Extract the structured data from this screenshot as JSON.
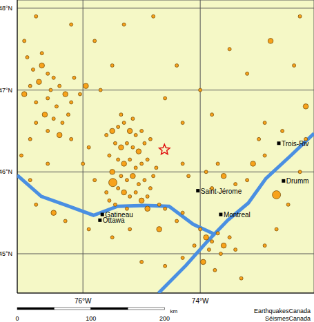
{
  "chart_data": {
    "type": "scatter",
    "xlim": [
      -77.12,
      -72.06
    ],
    "ylim": [
      44.52,
      48.1
    ],
    "xticks": [
      {
        "value": -76,
        "label": "76°W"
      },
      {
        "value": -74,
        "label": "74°W"
      }
    ],
    "yticks": [
      {
        "value": 45,
        "label": "45°N"
      },
      {
        "value": 46,
        "label": "46°N"
      },
      {
        "value": 47,
        "label": "47°N"
      },
      {
        "value": 48,
        "label": "48°N"
      }
    ],
    "grid": true,
    "color": "#f7a21b",
    "earthquakes": [
      [
        -76.85,
        47.25,
        1
      ],
      [
        -76.7,
        47.3,
        2
      ],
      [
        -76.6,
        47.2,
        1
      ],
      [
        -76.5,
        47.15,
        1
      ],
      [
        -76.75,
        47.1,
        2
      ],
      [
        -76.9,
        47.05,
        1
      ],
      [
        -76.55,
        47.0,
        1
      ],
      [
        -76.4,
        47.05,
        1
      ],
      [
        -76.3,
        46.95,
        2
      ],
      [
        -76.6,
        46.9,
        1
      ],
      [
        -76.8,
        46.85,
        1
      ],
      [
        -76.45,
        46.8,
        1
      ],
      [
        -76.2,
        46.85,
        1
      ],
      [
        -76.65,
        46.7,
        2
      ],
      [
        -76.5,
        46.65,
        1
      ],
      [
        -76.35,
        46.6,
        1
      ],
      [
        -76.8,
        46.6,
        1
      ],
      [
        -76.6,
        46.5,
        1
      ],
      [
        -76.4,
        46.45,
        2
      ],
      [
        -76.9,
        46.4,
        1
      ],
      [
        -76.2,
        46.4,
        1
      ],
      [
        -76.05,
        46.95,
        1
      ],
      [
        -75.95,
        47.05,
        2
      ],
      [
        -76.15,
        47.15,
        1
      ],
      [
        -76.95,
        47.4,
        1
      ],
      [
        -76.7,
        47.45,
        1
      ],
      [
        -77.0,
        46.95,
        2
      ],
      [
        -76.25,
        46.7,
        1
      ],
      [
        -75.6,
        46.45,
        1
      ],
      [
        -75.5,
        46.5,
        2
      ],
      [
        -75.4,
        46.55,
        1
      ],
      [
        -75.3,
        46.6,
        1
      ],
      [
        -75.2,
        46.5,
        2
      ],
      [
        -75.1,
        46.45,
        1
      ],
      [
        -75.45,
        46.35,
        1
      ],
      [
        -75.35,
        46.3,
        2
      ],
      [
        -75.25,
        46.35,
        1
      ],
      [
        -75.15,
        46.3,
        1
      ],
      [
        -75.05,
        46.25,
        2
      ],
      [
        -74.95,
        46.35,
        1
      ],
      [
        -75.55,
        46.2,
        1
      ],
      [
        -75.4,
        46.15,
        1
      ],
      [
        -75.3,
        46.1,
        2
      ],
      [
        -75.2,
        46.15,
        1
      ],
      [
        -75.1,
        46.05,
        1
      ],
      [
        -75.0,
        46.1,
        1
      ],
      [
        -74.9,
        46.15,
        1
      ],
      [
        -75.5,
        46.0,
        2
      ],
      [
        -75.35,
        45.95,
        1
      ],
      [
        -75.25,
        45.9,
        1
      ],
      [
        -75.15,
        45.95,
        2
      ],
      [
        -75.05,
        45.85,
        1
      ],
      [
        -74.95,
        45.9,
        1
      ],
      [
        -75.49,
        45.87,
        3
      ],
      [
        -75.4,
        45.8,
        1
      ],
      [
        -75.3,
        45.75,
        2
      ],
      [
        -75.2,
        45.7,
        1
      ],
      [
        -75.1,
        45.75,
        1
      ],
      [
        -74.85,
        45.8,
        1
      ],
      [
        -75.6,
        45.75,
        1
      ],
      [
        -75.55,
        45.65,
        1
      ],
      [
        -75.0,
        45.65,
        2
      ],
      [
        -74.9,
        45.7,
        1
      ],
      [
        -74.8,
        45.95,
        1
      ],
      [
        -74.75,
        46.05,
        1
      ],
      [
        -74.85,
        46.4,
        1
      ],
      [
        -75.0,
        46.5,
        1
      ],
      [
        -75.15,
        46.65,
        1
      ],
      [
        -75.35,
        46.7,
        1
      ],
      [
        -74.9,
        45.55,
        2
      ],
      [
        -74.7,
        45.6,
        1
      ],
      [
        -74.6,
        45.55,
        1
      ],
      [
        -75.25,
        45.55,
        1
      ],
      [
        -75.45,
        45.6,
        1
      ],
      [
        -76.5,
        45.5,
        2
      ],
      [
        -76.8,
        45.6,
        1
      ],
      [
        -76.3,
        45.4,
        1
      ],
      [
        -75.9,
        45.3,
        1
      ],
      [
        -75.5,
        45.2,
        1
      ],
      [
        -75.2,
        45.3,
        1
      ],
      [
        -74.7,
        45.3,
        2
      ],
      [
        -74.4,
        45.4,
        1
      ],
      [
        -74.3,
        45.5,
        1
      ],
      [
        -74.0,
        45.3,
        1
      ],
      [
        -73.9,
        45.2,
        2
      ],
      [
        -73.8,
        45.15,
        1
      ],
      [
        -73.7,
        45.25,
        1
      ],
      [
        -73.6,
        45.1,
        2
      ],
      [
        -73.5,
        45.2,
        1
      ],
      [
        -73.85,
        45.05,
        1
      ],
      [
        -73.65,
        45.0,
        1
      ],
      [
        -74.1,
        45.1,
        1
      ],
      [
        -73.4,
        45.05,
        1
      ],
      [
        -73.95,
        44.9,
        2
      ],
      [
        -73.75,
        44.8,
        1
      ],
      [
        -74.3,
        44.95,
        1
      ],
      [
        -74.6,
        44.85,
        1
      ],
      [
        -75.0,
        44.9,
        1
      ],
      [
        -73.3,
        44.7,
        1
      ],
      [
        -72.9,
        45.1,
        1
      ],
      [
        -72.7,
        45.3,
        1
      ],
      [
        -73.8,
        45.8,
        1
      ],
      [
        -73.6,
        45.95,
        2
      ],
      [
        -73.4,
        45.85,
        1
      ],
      [
        -73.2,
        45.9,
        1
      ],
      [
        -73.9,
        46.0,
        1
      ],
      [
        -74.2,
        45.95,
        1
      ],
      [
        -74.3,
        46.1,
        1
      ],
      [
        -73.7,
        46.1,
        1
      ],
      [
        -73.1,
        46.1,
        2
      ],
      [
        -72.9,
        46.2,
        1
      ],
      [
        -72.7,
        45.72,
        3
      ],
      [
        -72.5,
        45.6,
        1
      ],
      [
        -72.3,
        46.0,
        1
      ],
      [
        -72.2,
        46.4,
        1
      ],
      [
        -72.6,
        46.5,
        1
      ],
      [
        -72.9,
        46.6,
        1
      ],
      [
        -75.8,
        47.6,
        1
      ],
      [
        -75.3,
        47.8,
        1
      ],
      [
        -74.8,
        47.9,
        1
      ],
      [
        -73.5,
        47.5,
        1
      ],
      [
        -73.2,
        47.2,
        1
      ],
      [
        -72.8,
        47.6,
        2
      ],
      [
        -72.3,
        47.9,
        1
      ],
      [
        -74.4,
        47.3,
        1
      ],
      [
        -74.0,
        47.0,
        1
      ],
      [
        -73.8,
        46.7,
        1
      ],
      [
        -74.3,
        46.6,
        1
      ],
      [
        -75.7,
        47.0,
        1
      ],
      [
        -75.5,
        47.3,
        1
      ],
      [
        -76.2,
        47.8,
        1
      ],
      [
        -76.8,
        47.9,
        1
      ],
      [
        -77.0,
        47.6,
        1
      ],
      [
        -74.6,
        46.9,
        1
      ],
      [
        -75.9,
        46.3,
        1
      ],
      [
        -76.0,
        46.1,
        1
      ],
      [
        -75.8,
        45.9,
        1
      ],
      [
        -76.6,
        46.1,
        1
      ],
      [
        -76.9,
        45.9,
        1
      ],
      [
        -77.05,
        46.2,
        1
      ],
      [
        -72.4,
        47.3,
        1
      ],
      [
        -72.2,
        46.8,
        2
      ],
      [
        -73.0,
        46.4,
        1
      ]
    ],
    "event": {
      "x": -74.61,
      "y": 46.27,
      "color": "#e01010",
      "marker": "star"
    },
    "cities": [
      {
        "label": "Gatineau",
        "x": -75.67,
        "y": 45.48
      },
      {
        "label": "Ottawa",
        "x": -75.71,
        "y": 45.41
      },
      {
        "label": "Saint-Jérome",
        "x": -74.04,
        "y": 45.77
      },
      {
        "label": "Montreal",
        "x": -73.65,
        "y": 45.48
      },
      {
        "label": "Trois-Riv",
        "x": -72.66,
        "y": 46.35
      },
      {
        "label": "Drumm",
        "x": -72.58,
        "y": 45.89
      }
    ],
    "rivers": [
      {
        "color": "#4a8fe2",
        "points": [
          [
            -77.12,
            45.96
          ],
          [
            -76.71,
            45.7
          ],
          [
            -76.24,
            45.58
          ],
          [
            -75.82,
            45.47
          ],
          [
            -75.41,
            45.58
          ],
          [
            -74.94,
            45.59
          ],
          [
            -74.53,
            45.58
          ],
          [
            -74.12,
            45.36
          ],
          [
            -73.76,
            45.24
          ]
        ]
      },
      {
        "color": "#4a8fe2",
        "points": [
          [
            -74.71,
            44.52
          ],
          [
            -74.24,
            44.86
          ],
          [
            -73.88,
            45.15
          ],
          [
            -73.53,
            45.41
          ],
          [
            -73.18,
            45.62
          ],
          [
            -72.88,
            45.92
          ],
          [
            -72.47,
            46.19
          ],
          [
            -72.06,
            46.47
          ]
        ]
      }
    ],
    "scale_bar": {
      "ticks": [
        0,
        100,
        200
      ],
      "unit": "km"
    },
    "credits": [
      "EarthquakesCanada",
      "SéismesCanada"
    ]
  }
}
